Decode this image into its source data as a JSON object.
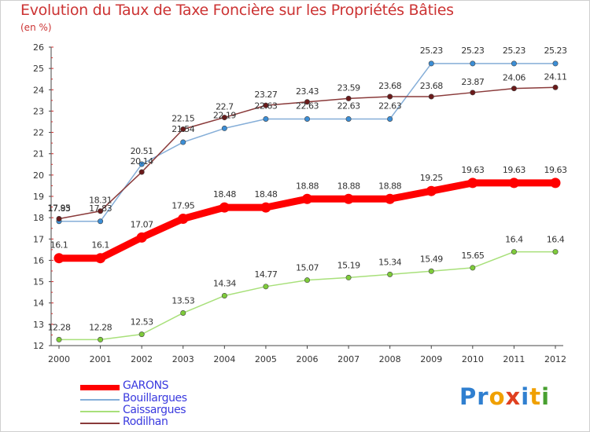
{
  "title": "Evolution du Taux de Taxe Foncière sur les Propriétés Bâties",
  "unit_label": "(en %)",
  "logo": {
    "text": "Proxiti",
    "letters": [
      "P",
      "r",
      "o",
      "x",
      "i",
      "t",
      "i"
    ],
    "colors": [
      "#2f7fd0",
      "#2f7fd0",
      "#f0a000",
      "#e04020",
      "#2f7fd0",
      "#f0a000",
      "#48a030"
    ]
  },
  "chart_data": {
    "type": "line",
    "title": "Evolution du Taux de Taxe Foncière sur les Propriétés Bâties",
    "ylabel": "(en %)",
    "xlabel": "",
    "x": [
      "2000",
      "2001",
      "2002",
      "2003",
      "2004",
      "2005",
      "2006",
      "2007",
      "2008",
      "2009",
      "2010",
      "2011",
      "2012"
    ],
    "ylim": [
      12,
      26
    ],
    "yticks": [
      "12",
      "13",
      "14",
      "15",
      "16",
      "17",
      "18",
      "19",
      "20",
      "21",
      "22",
      "23",
      "24",
      "25",
      "26"
    ],
    "grid": false,
    "legend": "bottom-left",
    "series": [
      {
        "name": "GARONS",
        "color": "#ff0000",
        "marker_fill": "#ff0000",
        "values": [
          16.1,
          16.1,
          17.07,
          17.95,
          18.48,
          18.48,
          18.88,
          18.88,
          18.88,
          19.25,
          19.63,
          19.63,
          19.63
        ],
        "labels": [
          "16.1",
          "16.1",
          "17.07",
          "17.95",
          "18.48",
          "18.48",
          "18.88",
          "18.88",
          "18.88",
          "19.25",
          "19.63",
          "19.63",
          "19.63"
        ]
      },
      {
        "name": "Bouillargues",
        "color": "#85aed8",
        "marker_fill": "#3b8ed6",
        "values": [
          17.83,
          17.83,
          20.51,
          21.54,
          22.19,
          22.63,
          22.63,
          22.63,
          22.63,
          25.23,
          25.23,
          25.23,
          25.23
        ],
        "labels": [
          "17.83",
          "17.83",
          "20.51",
          "21.54",
          "22.19",
          "22.63",
          "22.63",
          "22.63",
          "22.63",
          "25.23",
          "25.23",
          "25.23",
          "25.23"
        ]
      },
      {
        "name": "Caissargues",
        "color": "#a8e07a",
        "marker_fill": "#7ecb3a",
        "values": [
          12.28,
          12.28,
          12.53,
          13.53,
          14.34,
          14.77,
          15.07,
          15.19,
          15.34,
          15.49,
          15.65,
          16.4,
          16.4
        ],
        "labels": [
          "12.28",
          "12.28",
          "12.53",
          "13.53",
          "14.34",
          "14.77",
          "15.07",
          "15.19",
          "15.34",
          "15.49",
          "15.65",
          "16.4",
          "16.4"
        ]
      },
      {
        "name": "Rodilhan",
        "color": "#8a3a3a",
        "marker_fill": "#6b1a1a",
        "values": [
          17.95,
          18.31,
          20.14,
          22.15,
          22.7,
          23.27,
          23.43,
          23.59,
          23.68,
          23.68,
          23.87,
          24.06,
          24.11
        ],
        "labels": [
          "17.95",
          "18.31",
          "20.14",
          "22.15",
          "22.7",
          "23.27",
          "23.43",
          "23.59",
          "23.68",
          "23.68",
          "23.87",
          "24.06",
          "24.11"
        ]
      }
    ]
  }
}
